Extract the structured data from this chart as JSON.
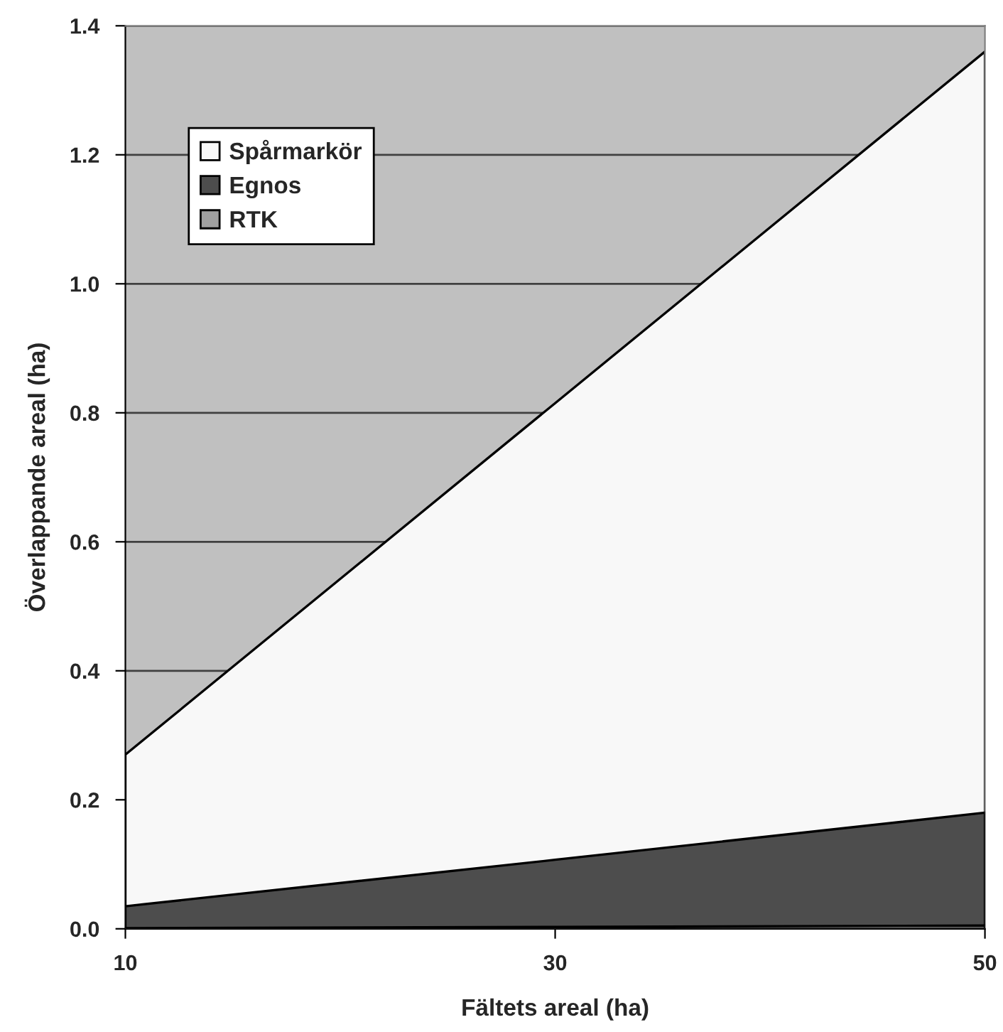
{
  "chart_data": {
    "type": "area",
    "xlabel": "Fältets areal (ha)",
    "ylabel": "Överlappande areal (ha)",
    "categories": [
      "10",
      "30",
      "50"
    ],
    "series": [
      {
        "name": "Spårmarkör",
        "color": "#f8f8f8",
        "values": [
          0.27,
          0.815,
          1.36
        ]
      },
      {
        "name": "Egnos",
        "color": "#4d4d4d",
        "values": [
          0.035,
          0.107,
          0.18
        ]
      },
      {
        "name": "RTK",
        "color": "#a0a0a0",
        "values": [
          0.001,
          0.003,
          0.005
        ]
      }
    ],
    "ylim": [
      0,
      1.4
    ],
    "yticks": [
      {
        "value": 0,
        "label": "0.0"
      },
      {
        "value": 0.2,
        "label": "0.2"
      },
      {
        "value": 0.4,
        "label": "0.4"
      },
      {
        "value": 0.6,
        "label": "0.6"
      },
      {
        "value": 0.8,
        "label": "0.8"
      },
      {
        "value": 1.0,
        "label": "1.0"
      },
      {
        "value": 1.2,
        "label": "1.2"
      },
      {
        "value": 1.4,
        "label": "1.4"
      }
    ],
    "grid": "y",
    "legend": "top left"
  }
}
